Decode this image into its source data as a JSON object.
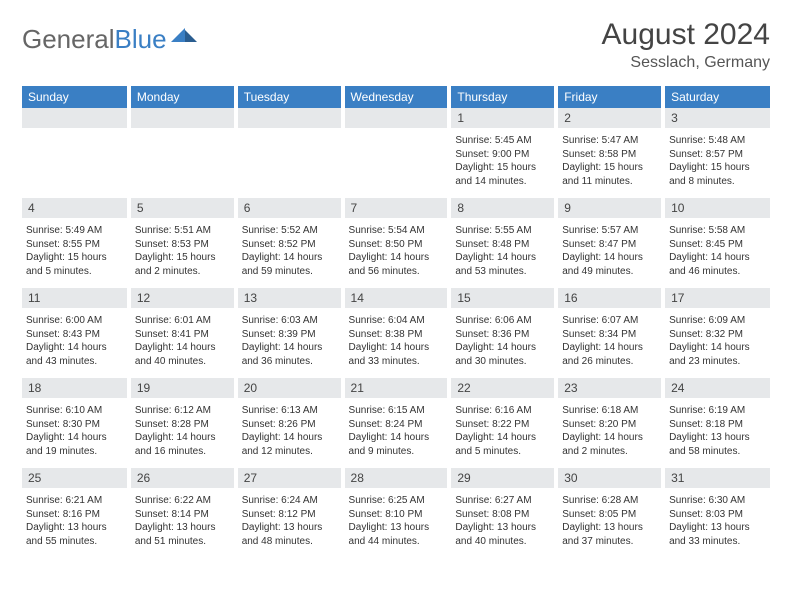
{
  "logo": {
    "part1": "General",
    "part2": "Blue"
  },
  "title": "August 2024",
  "location": "Sesslach, Germany",
  "colors": {
    "accent": "#3a7fc4",
    "header_bg": "#3a7fc4",
    "header_text": "#ffffff",
    "daynum_bg": "#e6e8ea",
    "text": "#333333"
  },
  "day_headers": [
    "Sunday",
    "Monday",
    "Tuesday",
    "Wednesday",
    "Thursday",
    "Friday",
    "Saturday"
  ],
  "weeks": [
    {
      "nums": [
        "",
        "",
        "",
        "",
        "1",
        "2",
        "3"
      ],
      "infos": [
        "",
        "",
        "",
        "",
        "Sunrise: 5:45 AM\nSunset: 9:00 PM\nDaylight: 15 hours\nand 14 minutes.",
        "Sunrise: 5:47 AM\nSunset: 8:58 PM\nDaylight: 15 hours\nand 11 minutes.",
        "Sunrise: 5:48 AM\nSunset: 8:57 PM\nDaylight: 15 hours\nand 8 minutes."
      ]
    },
    {
      "nums": [
        "4",
        "5",
        "6",
        "7",
        "8",
        "9",
        "10"
      ],
      "infos": [
        "Sunrise: 5:49 AM\nSunset: 8:55 PM\nDaylight: 15 hours\nand 5 minutes.",
        "Sunrise: 5:51 AM\nSunset: 8:53 PM\nDaylight: 15 hours\nand 2 minutes.",
        "Sunrise: 5:52 AM\nSunset: 8:52 PM\nDaylight: 14 hours\nand 59 minutes.",
        "Sunrise: 5:54 AM\nSunset: 8:50 PM\nDaylight: 14 hours\nand 56 minutes.",
        "Sunrise: 5:55 AM\nSunset: 8:48 PM\nDaylight: 14 hours\nand 53 minutes.",
        "Sunrise: 5:57 AM\nSunset: 8:47 PM\nDaylight: 14 hours\nand 49 minutes.",
        "Sunrise: 5:58 AM\nSunset: 8:45 PM\nDaylight: 14 hours\nand 46 minutes."
      ]
    },
    {
      "nums": [
        "11",
        "12",
        "13",
        "14",
        "15",
        "16",
        "17"
      ],
      "infos": [
        "Sunrise: 6:00 AM\nSunset: 8:43 PM\nDaylight: 14 hours\nand 43 minutes.",
        "Sunrise: 6:01 AM\nSunset: 8:41 PM\nDaylight: 14 hours\nand 40 minutes.",
        "Sunrise: 6:03 AM\nSunset: 8:39 PM\nDaylight: 14 hours\nand 36 minutes.",
        "Sunrise: 6:04 AM\nSunset: 8:38 PM\nDaylight: 14 hours\nand 33 minutes.",
        "Sunrise: 6:06 AM\nSunset: 8:36 PM\nDaylight: 14 hours\nand 30 minutes.",
        "Sunrise: 6:07 AM\nSunset: 8:34 PM\nDaylight: 14 hours\nand 26 minutes.",
        "Sunrise: 6:09 AM\nSunset: 8:32 PM\nDaylight: 14 hours\nand 23 minutes."
      ]
    },
    {
      "nums": [
        "18",
        "19",
        "20",
        "21",
        "22",
        "23",
        "24"
      ],
      "infos": [
        "Sunrise: 6:10 AM\nSunset: 8:30 PM\nDaylight: 14 hours\nand 19 minutes.",
        "Sunrise: 6:12 AM\nSunset: 8:28 PM\nDaylight: 14 hours\nand 16 minutes.",
        "Sunrise: 6:13 AM\nSunset: 8:26 PM\nDaylight: 14 hours\nand 12 minutes.",
        "Sunrise: 6:15 AM\nSunset: 8:24 PM\nDaylight: 14 hours\nand 9 minutes.",
        "Sunrise: 6:16 AM\nSunset: 8:22 PM\nDaylight: 14 hours\nand 5 minutes.",
        "Sunrise: 6:18 AM\nSunset: 8:20 PM\nDaylight: 14 hours\nand 2 minutes.",
        "Sunrise: 6:19 AM\nSunset: 8:18 PM\nDaylight: 13 hours\nand 58 minutes."
      ]
    },
    {
      "nums": [
        "25",
        "26",
        "27",
        "28",
        "29",
        "30",
        "31"
      ],
      "infos": [
        "Sunrise: 6:21 AM\nSunset: 8:16 PM\nDaylight: 13 hours\nand 55 minutes.",
        "Sunrise: 6:22 AM\nSunset: 8:14 PM\nDaylight: 13 hours\nand 51 minutes.",
        "Sunrise: 6:24 AM\nSunset: 8:12 PM\nDaylight: 13 hours\nand 48 minutes.",
        "Sunrise: 6:25 AM\nSunset: 8:10 PM\nDaylight: 13 hours\nand 44 minutes.",
        "Sunrise: 6:27 AM\nSunset: 8:08 PM\nDaylight: 13 hours\nand 40 minutes.",
        "Sunrise: 6:28 AM\nSunset: 8:05 PM\nDaylight: 13 hours\nand 37 minutes.",
        "Sunrise: 6:30 AM\nSunset: 8:03 PM\nDaylight: 13 hours\nand 33 minutes."
      ]
    }
  ]
}
